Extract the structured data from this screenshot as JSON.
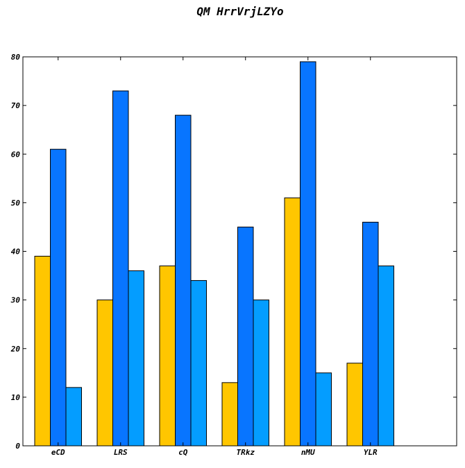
{
  "chart_data": {
    "type": "bar",
    "title": "QM HrrVrjLZYo",
    "xlabel": "",
    "ylabel": "",
    "categories": [
      "eCD",
      "LRS",
      "cQ",
      "TRkz",
      "nMU",
      "YLR"
    ],
    "series": [
      {
        "values": [
          39,
          30,
          37,
          13,
          51,
          17
        ],
        "color": "#ffc600"
      },
      {
        "values": [
          61,
          73,
          68,
          45,
          79,
          46
        ],
        "color": "#0875ff"
      },
      {
        "values": [
          12,
          36,
          34,
          30,
          15,
          37
        ],
        "color": "#049dff"
      }
    ],
    "ylim": [
      0,
      80
    ],
    "yticks": [
      0,
      10,
      20,
      30,
      40,
      50,
      60,
      70,
      80
    ],
    "grid": false,
    "legend": "none"
  }
}
